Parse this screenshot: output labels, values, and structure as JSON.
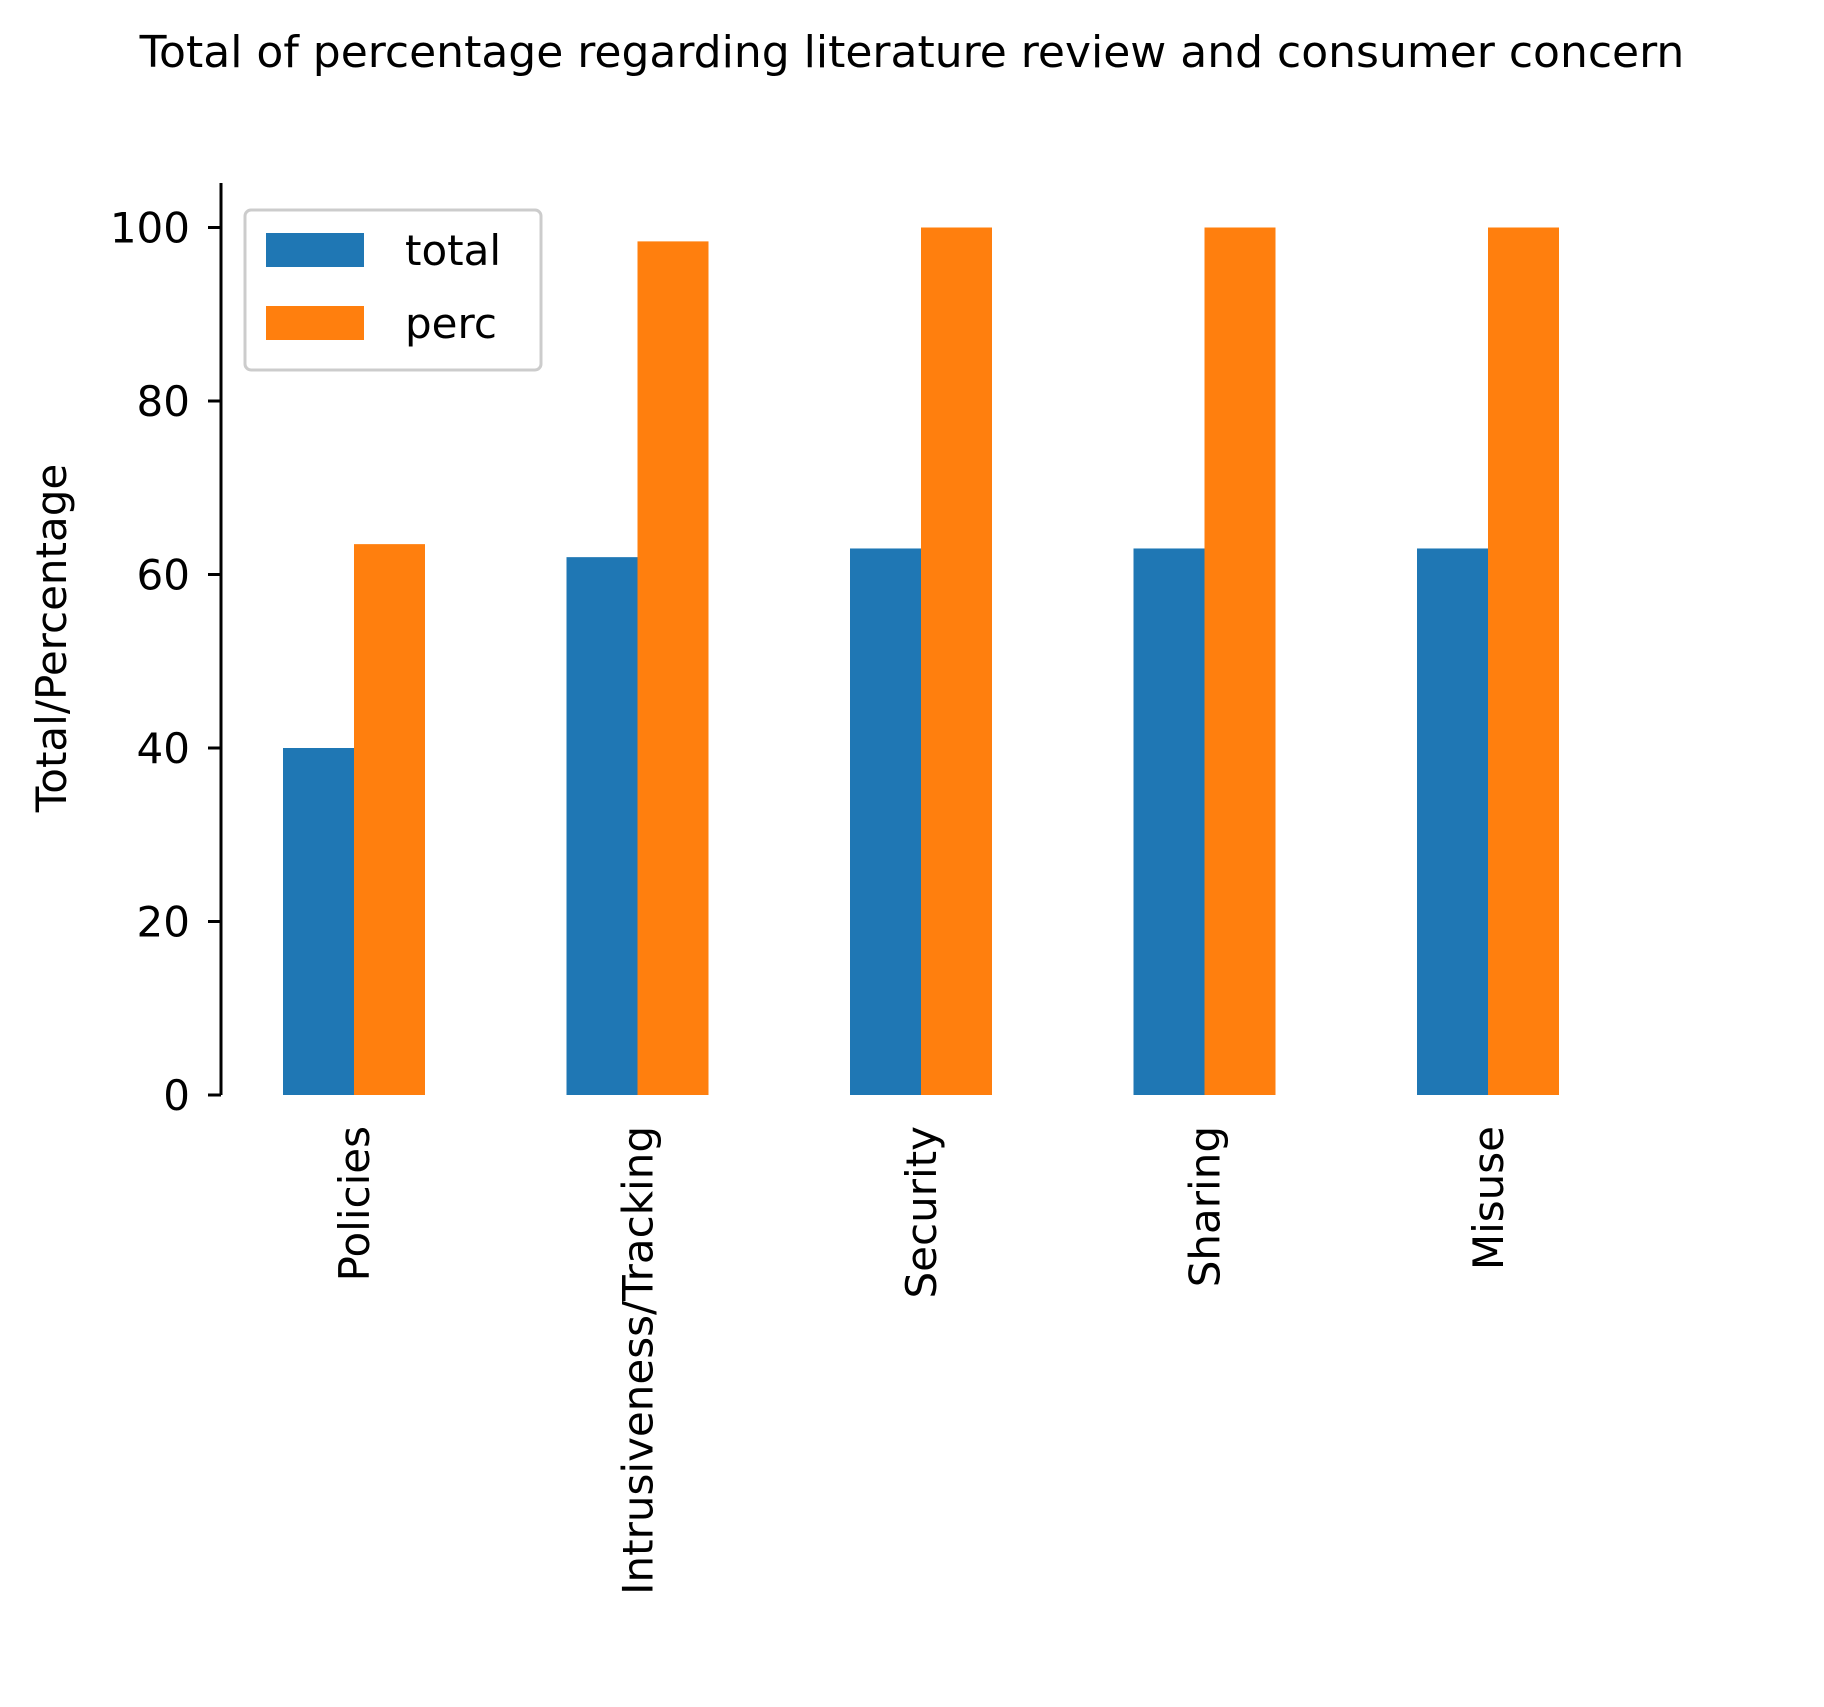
{
  "chart_data": {
    "type": "bar",
    "title": "Total of percentage regarding literature review and consumer concern",
    "xlabel": "",
    "ylabel": "Total/Percentage",
    "categories": [
      "Policies",
      "Intrusiveness/Tracking",
      "Security",
      "Sharing",
      "Misuse"
    ],
    "series": [
      {
        "name": "total",
        "color": "#1f77b4",
        "values": [
          40,
          62,
          63,
          63,
          63
        ]
      },
      {
        "name": "perc",
        "color": "#ff7f0e",
        "values": [
          63.5,
          98.4,
          100,
          100,
          100
        ]
      }
    ],
    "ylim": [
      0,
      105
    ],
    "yticks": [
      0,
      20,
      40,
      60,
      80,
      100
    ],
    "grid": false,
    "legend_position": "top-left"
  }
}
